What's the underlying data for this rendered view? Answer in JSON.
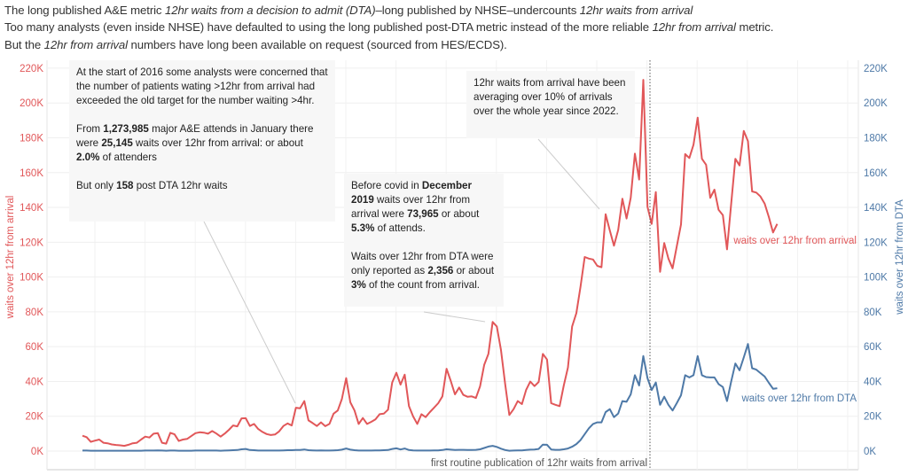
{
  "header": {
    "lines": [
      [
        {
          "text": "The long published A&E metric ",
          "italic": false
        },
        {
          "text": "12hr waits from a decision to admit (DTA)",
          "italic": true
        },
        {
          "text": "–long published by NHSE–undercounts ",
          "italic": false
        },
        {
          "text": "12hr waits from arrival",
          "italic": true
        }
      ],
      [
        {
          "text": "Too many analysts (even inside NHSE) have defaulted to using the long published post-DTA metric instead of the more reliable ",
          "italic": false
        },
        {
          "text": "12hr from arrival",
          "italic": true
        },
        {
          "text": " metric.",
          "italic": false
        }
      ],
      [
        {
          "text": "But the ",
          "italic": false
        },
        {
          "text": "12hr from arrival",
          "italic": true
        },
        {
          "text": " numbers have long been available on request (sourced from HES/ECDS).",
          "italic": false
        }
      ]
    ]
  },
  "annotations": [
    {
      "paragraphs": [
        [
          {
            "text": "At the start of 2016 some analysts were concerned that the number of patients wating >12hr from arrival had exceeded the old target for the number waiting >4hr.",
            "bold": false
          }
        ],
        [
          {
            "text": "From ",
            "bold": false
          },
          {
            "text": "1,273,985",
            "bold": true
          },
          {
            "text": " major A&E attends in January there were ",
            "bold": false
          },
          {
            "text": "25,145",
            "bold": true
          },
          {
            "text": " waits over 12hr from arrival: or about ",
            "bold": false
          },
          {
            "text": "2.0%",
            "bold": true
          },
          {
            "text": " of attenders",
            "bold": false
          }
        ],
        [
          {
            "text": "But only ",
            "bold": false
          },
          {
            "text": "158",
            "bold": true
          },
          {
            "text": " post DTA 12hr waits",
            "bold": false
          }
        ]
      ]
    },
    {
      "paragraphs": [
        [
          {
            "text": "Before covid in ",
            "bold": false
          },
          {
            "text": "December 2019",
            "bold": true
          },
          {
            "text": " waits over 12hr from arrival were ",
            "bold": false
          },
          {
            "text": "73,965",
            "bold": true
          },
          {
            "text": " or about ",
            "bold": false
          },
          {
            "text": "5.3%",
            "bold": true
          },
          {
            "text": " of attends.",
            "bold": false
          }
        ],
        [
          {
            "text": "Waits over 12hr from DTA were only reported as ",
            "bold": false
          },
          {
            "text": "2,356",
            "bold": true
          },
          {
            "text": " or about ",
            "bold": false
          },
          {
            "text": "3%",
            "bold": true
          },
          {
            "text": " of the count from arrival.",
            "bold": false
          }
        ]
      ]
    },
    {
      "paragraphs": [
        [
          {
            "text": "12hr waits from arrival have been averaging over 10% of arrivals over the whole year since 2022.",
            "bold": false
          }
        ]
      ]
    }
  ],
  "chart_data": {
    "type": "line",
    "title": "",
    "xlabel": "",
    "ylabel_left": "waits over 12hr from arrival",
    "ylabel_right": "waits over 12hr from DTA",
    "ylim": [
      0,
      220000
    ],
    "y_ticks": [
      "0K",
      "20K",
      "40K",
      "60K",
      "80K",
      "100K",
      "120K",
      "140K",
      "160K",
      "180K",
      "200K",
      "220K"
    ],
    "grid": true,
    "reference_line_label": "first routine publication of 12hr waits from arrival",
    "colors": {
      "arrival": "#e15759",
      "dta": "#4e79a7"
    },
    "units": "thousands",
    "series": [
      {
        "name": "waits over 12hr from arrival",
        "axis": "left",
        "values": [
          8.8,
          8.0,
          5.3,
          6.0,
          6.6,
          4.8,
          4.5,
          3.8,
          3.5,
          3.3,
          3.0,
          3.6,
          4.5,
          4.8,
          6.6,
          8.3,
          7.8,
          10.0,
          10.3,
          4.8,
          4.3,
          10.5,
          9.6,
          5.8,
          6.6,
          7.0,
          8.6,
          10.3,
          10.8,
          10.6,
          10.0,
          11.5,
          10.1,
          8.3,
          10.1,
          12.2,
          14.7,
          14.2,
          18.8,
          18.9,
          14.4,
          15.6,
          12.7,
          11.0,
          9.8,
          9.2,
          9.5,
          11.3,
          14.4,
          15.9,
          14.7,
          24.9,
          24.6,
          28.7,
          17.6,
          16.1,
          14.4,
          16.5,
          14.3,
          15.6,
          21.5,
          23.3,
          30.0,
          41.9,
          28.0,
          23.3,
          15.6,
          19.0,
          15.6,
          16.8,
          18.2,
          21.2,
          21.5,
          23.8,
          39.4,
          45.0,
          38.2,
          43.9,
          25.8,
          19.9,
          15.6,
          21.2,
          19.5,
          22.4,
          24.9,
          27.5,
          31.4,
          47.3,
          40.2,
          32.6,
          36.5,
          32.3,
          31.2,
          31.4,
          30.5,
          37.2,
          49.6,
          55.8,
          74.2,
          71.6,
          58.0,
          38.5,
          20.7,
          24.1,
          28.7,
          27.0,
          35.1,
          39.9,
          37.3,
          39.7,
          55.8,
          52.6,
          27.5,
          26.6,
          25.8,
          37.7,
          48.0,
          71.6,
          79.3,
          94.5,
          111.5,
          110.6,
          110.1,
          106.4,
          105.6,
          136.1,
          126.8,
          118.0,
          127.1,
          145.0,
          133.6,
          145.5,
          170.9,
          156.0,
          213.3,
          140.4,
          130.5,
          148.8,
          103.0,
          119.5,
          110.6,
          105.0,
          117.5,
          130.2,
          170.6,
          168.4,
          176.0,
          191.6,
          167.9,
          164.5,
          145.5,
          150.2,
          138.6,
          135.6,
          115.9,
          142.1,
          167.9,
          164.1,
          183.9,
          178.1,
          149.2,
          148.5,
          146.3,
          142.1,
          134.4,
          125.6,
          130.5
        ]
      },
      {
        "name": "waits over 12hr from DTA",
        "axis": "right",
        "values": [
          0.3,
          0.3,
          0.2,
          0.2,
          0.2,
          0.2,
          0.2,
          0.2,
          0.2,
          0.2,
          0.2,
          0.2,
          0.2,
          0.2,
          0.2,
          0.3,
          0.3,
          0.3,
          0.4,
          0.3,
          0.2,
          0.3,
          0.3,
          0.2,
          0.2,
          0.2,
          0.2,
          0.3,
          0.3,
          0.3,
          0.3,
          0.3,
          0.3,
          0.2,
          0.3,
          0.4,
          0.5,
          0.6,
          1.0,
          1.2,
          0.6,
          0.5,
          0.3,
          0.3,
          0.3,
          0.3,
          0.3,
          0.3,
          0.4,
          0.5,
          0.5,
          0.6,
          0.6,
          0.9,
          0.5,
          0.4,
          0.3,
          0.4,
          0.3,
          0.3,
          0.4,
          0.5,
          0.8,
          1.5,
          0.8,
          0.5,
          0.3,
          0.3,
          0.3,
          0.3,
          0.4,
          0.4,
          0.5,
          0.6,
          1.2,
          1.6,
          0.9,
          1.5,
          0.6,
          0.4,
          0.3,
          0.3,
          0.3,
          0.3,
          0.4,
          0.4,
          0.6,
          1.0,
          0.8,
          0.6,
          0.7,
          0.7,
          0.6,
          0.6,
          0.7,
          1.0,
          1.8,
          2.6,
          3.0,
          2.4,
          1.4,
          0.6,
          0.2,
          0.3,
          0.4,
          0.4,
          0.6,
          0.8,
          0.9,
          1.2,
          3.7,
          3.6,
          0.9,
          0.7,
          0.7,
          1.0,
          1.5,
          2.5,
          4.0,
          6.3,
          9.7,
          13.1,
          15.6,
          16.5,
          16.5,
          22.4,
          24.1,
          19.5,
          21.6,
          28.7,
          28.3,
          32.6,
          43.6,
          37.7,
          54.6,
          41.9,
          35.1,
          39.4,
          26.6,
          31.2,
          26.6,
          23.3,
          27.5,
          32.1,
          43.6,
          42.3,
          43.6,
          54.6,
          43.6,
          42.5,
          42.3,
          42.3,
          38.5,
          36.8,
          28.7,
          40.0,
          50.3,
          46.4,
          53.8,
          61.5,
          47.6,
          46.8,
          44.8,
          42.8,
          39.2,
          35.8,
          36.1
        ]
      }
    ]
  }
}
